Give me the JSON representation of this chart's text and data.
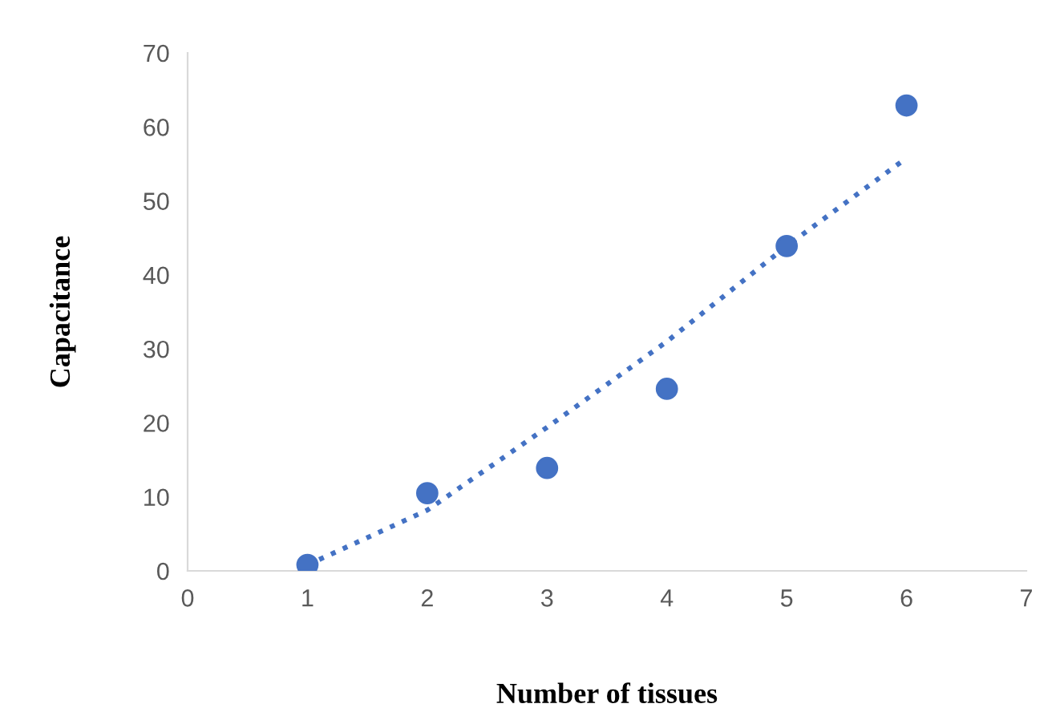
{
  "chart_data": {
    "type": "scatter",
    "xlabel": "Number of tissues",
    "ylabel": "Capacitance",
    "xlim": [
      0,
      7
    ],
    "xticks": [
      0,
      1,
      2,
      3,
      4,
      5,
      6,
      7
    ],
    "ylim": [
      0,
      70
    ],
    "yticks": [
      0,
      10,
      20,
      30,
      40,
      50,
      60,
      70
    ],
    "grid": false,
    "legend": false,
    "marker": "circle",
    "series": [
      {
        "color": "#4472c4",
        "x": [
          1,
          2,
          3,
          4,
          5,
          6
        ],
        "values": [
          0.8,
          10.5,
          13.9,
          24.6,
          43.9,
          62.9
        ]
      },
      {
        "type": "line",
        "color": "#4472c4",
        "line_style": "dotted",
        "marker": "none",
        "x": [
          1,
          2,
          3,
          4,
          5,
          6
        ],
        "values": [
          0.8,
          8.2,
          19.4,
          31,
          43.9,
          55.8
        ]
      }
    ]
  }
}
